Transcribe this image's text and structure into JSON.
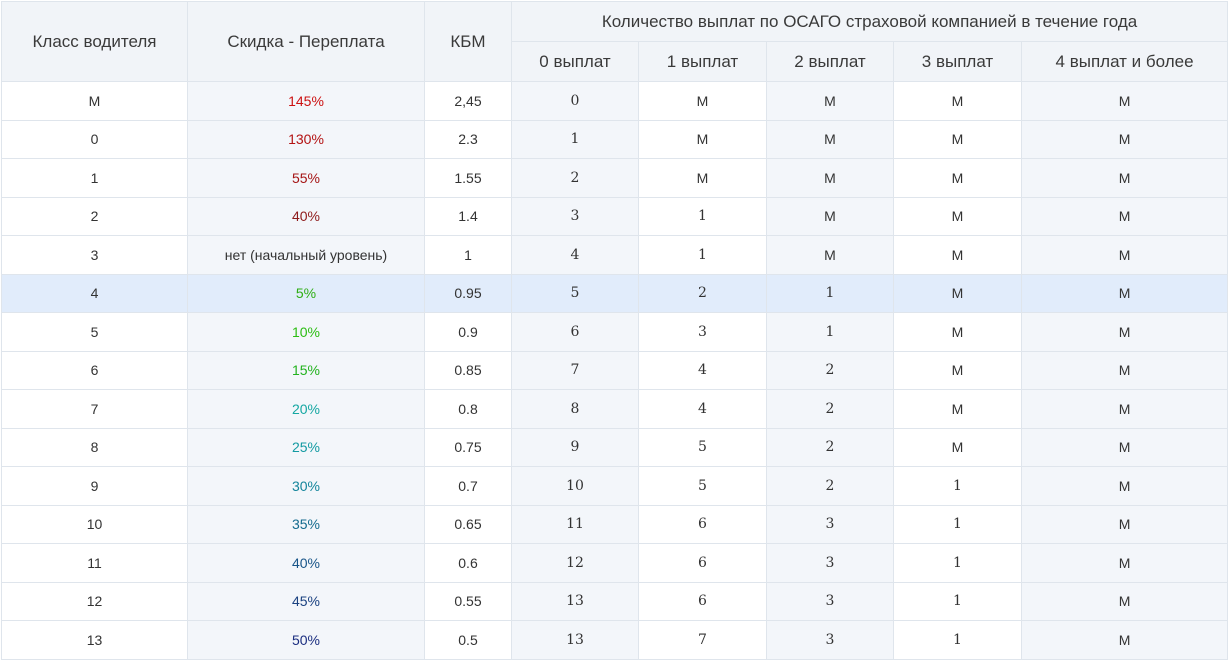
{
  "header": {
    "class_label": "Класс водителя",
    "discount_label": "Скидка - Переплата",
    "kbm_label": "КБМ",
    "payouts_group_label": "Количество выплат по ОСАГО страховой компанией в течение года",
    "payout_cols": [
      "0 выплат",
      "1 выплат",
      "2 выплат",
      "3 выплат",
      "4 выплат и более"
    ]
  },
  "rows": [
    {
      "cls": "М",
      "discount": "145%",
      "color": "#cc1111",
      "kbm": "2,45",
      "p": [
        "0",
        "М",
        "М",
        "М",
        "М"
      ]
    },
    {
      "cls": "0",
      "discount": "130%",
      "color": "#b31212",
      "kbm": "2.3",
      "p": [
        "1",
        "М",
        "М",
        "М",
        "М"
      ]
    },
    {
      "cls": "1",
      "discount": "55%",
      "color": "#a51515",
      "kbm": "1.55",
      "p": [
        "2",
        "М",
        "М",
        "М",
        "М"
      ]
    },
    {
      "cls": "2",
      "discount": "40%",
      "color": "#8e1a1a",
      "kbm": "1.4",
      "p": [
        "3",
        "1",
        "М",
        "М",
        "М"
      ]
    },
    {
      "cls": "3",
      "discount": "нет (начальный уровень)",
      "color": "#333333",
      "kbm": "1",
      "p": [
        "4",
        "1",
        "М",
        "М",
        "М"
      ]
    },
    {
      "cls": "4",
      "discount": "5%",
      "color": "#2fae14",
      "kbm": "0.95",
      "p": [
        "5",
        "2",
        "1",
        "М",
        "М"
      ],
      "highlight": true
    },
    {
      "cls": "5",
      "discount": "10%",
      "color": "#2bbd12",
      "kbm": "0.9",
      "p": [
        "6",
        "3",
        "1",
        "М",
        "М"
      ]
    },
    {
      "cls": "6",
      "discount": "15%",
      "color": "#22b21e",
      "kbm": "0.85",
      "p": [
        "7",
        "4",
        "2",
        "М",
        "М"
      ]
    },
    {
      "cls": "7",
      "discount": "20%",
      "color": "#14a7a2",
      "kbm": "0.8",
      "p": [
        "8",
        "4",
        "2",
        "М",
        "М"
      ]
    },
    {
      "cls": "8",
      "discount": "25%",
      "color": "#139aa2",
      "kbm": "0.75",
      "p": [
        "9",
        "5",
        "2",
        "М",
        "М"
      ]
    },
    {
      "cls": "9",
      "discount": "30%",
      "color": "#13859b",
      "kbm": "0.7",
      "p": [
        "10",
        "5",
        "2",
        "1",
        "М"
      ]
    },
    {
      "cls": "10",
      "discount": "35%",
      "color": "#146b8e",
      "kbm": "0.65",
      "p": [
        "11",
        "6",
        "3",
        "1",
        "М"
      ]
    },
    {
      "cls": "11",
      "discount": "40%",
      "color": "#175488",
      "kbm": "0.6",
      "p": [
        "12",
        "6",
        "3",
        "1",
        "М"
      ]
    },
    {
      "cls": "12",
      "discount": "45%",
      "color": "#1a4180",
      "kbm": "0.55",
      "p": [
        "13",
        "6",
        "3",
        "1",
        "М"
      ]
    },
    {
      "cls": "13",
      "discount": "50%",
      "color": "#1b2e80",
      "kbm": "0.5",
      "p": [
        "13",
        "7",
        "3",
        "1",
        "М"
      ]
    }
  ]
}
